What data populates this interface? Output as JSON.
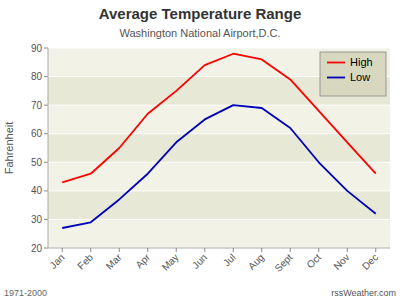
{
  "chart_data": {
    "type": "line",
    "title": "Average Temperature Range",
    "subtitle": "Washington National Airport,D.C.",
    "y_label": "Fahrenheit",
    "annotations": [
      "1971-2000",
      "rssWeather.com"
    ],
    "categories": [
      "Jan",
      "Feb",
      "Mar",
      "Apr",
      "May",
      "Jun",
      "Jul",
      "Aug",
      "Sept",
      "Oct",
      "Nov",
      "Dec"
    ],
    "series": [
      {
        "name": "High",
        "color": "#ff0000",
        "values": [
          43,
          46,
          55,
          67,
          75,
          84,
          88,
          86,
          79,
          68,
          57,
          46
        ]
      },
      {
        "name": "Low",
        "color": "#0000bb",
        "values": [
          27,
          29,
          37,
          46,
          57,
          65,
          70,
          69,
          62,
          50,
          40,
          32
        ]
      }
    ],
    "ylim": [
      20,
      90
    ],
    "yticks": [
      20,
      30,
      40,
      50,
      60,
      70,
      80,
      90
    ],
    "grid": true,
    "legend": "upper right"
  }
}
